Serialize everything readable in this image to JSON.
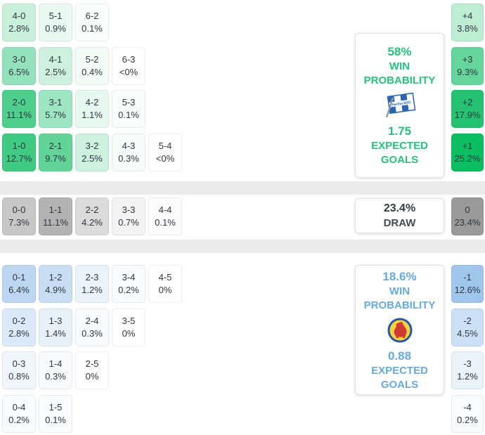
{
  "colors": {
    "home_accent": "#29c07c",
    "away_accent": "#68a9db",
    "draw_text": "#3d434b",
    "cell_text": "#2f3640",
    "divider": "#ececec",
    "home_strongest_cell": "#0cbe62",
    "away_strongest_cell": "#a0c6ec",
    "draw_strongest_cell": "#9a9a9a",
    "hertha_blue": "#2a64ae",
    "braunschweig_yellow": "#f7d23e",
    "braunschweig_blue": "#2357a7",
    "braunschweig_red": "#d03a32"
  },
  "home_card": {
    "win_pct": "58%",
    "win_label_line1": "WIN",
    "win_label_line2": "PROBABILITY",
    "expected_goals": "1.75",
    "goals_label_line1": "EXPECTED",
    "goals_label_line2": "GOALS",
    "team_icon": "hertha-bsc-flag-icon"
  },
  "draw_card": {
    "pct": "23.4%",
    "label": "DRAW"
  },
  "away_card": {
    "win_pct": "18.6%",
    "win_label_line1": "WIN",
    "win_label_line2": "PROBABILITY",
    "expected_goals": "0.88",
    "goals_label_line1": "EXPECTED",
    "goals_label_line2": "GOALS",
    "team_icon": "eintracht-braunschweig-crest-icon"
  },
  "grid": {
    "home_rows": [
      [
        {
          "label": "4-0",
          "pct": "2.8%",
          "color": "#c8f0db"
        },
        {
          "label": "5-1",
          "pct": "0.9%",
          "color": "#eaf9f1"
        },
        {
          "label": "6-2",
          "pct": "0.1%",
          "color": "#fbfdfc"
        }
      ],
      [
        {
          "label": "3-0",
          "pct": "6.5%",
          "color": "#93e2bb"
        },
        {
          "label": "4-1",
          "pct": "2.5%",
          "color": "#cdf1de"
        },
        {
          "label": "5-2",
          "pct": "0.4%",
          "color": "#f4fcf8"
        },
        {
          "label": "6-3",
          "pct": "<0%",
          "color": "#ffffff"
        }
      ],
      [
        {
          "label": "2-0",
          "pct": "11.1%",
          "color": "#4fcf8c"
        },
        {
          "label": "3-1",
          "pct": "5.7%",
          "color": "#9ee5c2"
        },
        {
          "label": "4-2",
          "pct": "1.1%",
          "color": "#e6f8ef"
        },
        {
          "label": "5-3",
          "pct": "0.1%",
          "color": "#fbfdfc"
        }
      ],
      [
        {
          "label": "1-0",
          "pct": "12.7%",
          "color": "#40cb82"
        },
        {
          "label": "2-1",
          "pct": "9.7%",
          "color": "#62d498"
        },
        {
          "label": "3-2",
          "pct": "2.5%",
          "color": "#cdf1de"
        },
        {
          "label": "4-3",
          "pct": "0.3%",
          "color": "#f6fcf9"
        },
        {
          "label": "5-4",
          "pct": "<0%",
          "color": "#ffffff"
        }
      ]
    ],
    "draw_row": [
      {
        "label": "0-0",
        "pct": "7.3%",
        "color": "#c7c7c7"
      },
      {
        "label": "1-1",
        "pct": "11.1%",
        "color": "#b3b3b3"
      },
      {
        "label": "2-2",
        "pct": "4.2%",
        "color": "#dbdbdb"
      },
      {
        "label": "3-3",
        "pct": "0.7%",
        "color": "#f3f3f3"
      },
      {
        "label": "4-4",
        "pct": "0.1%",
        "color": "#fcfcfc"
      }
    ],
    "away_rows": [
      [
        {
          "label": "0-1",
          "pct": "6.4%",
          "color": "#bdd6f1"
        },
        {
          "label": "1-2",
          "pct": "4.9%",
          "color": "#c9def4"
        },
        {
          "label": "2-3",
          "pct": "1.2%",
          "color": "#eaf2fa"
        },
        {
          "label": "3-4",
          "pct": "0.2%",
          "color": "#f9fbfe"
        },
        {
          "label": "4-5",
          "pct": "0%",
          "color": "#ffffff"
        }
      ],
      [
        {
          "label": "0-2",
          "pct": "2.8%",
          "color": "#dce9f8"
        },
        {
          "label": "1-3",
          "pct": "1.4%",
          "color": "#e8f1fa"
        },
        {
          "label": "2-4",
          "pct": "0.3%",
          "color": "#f8fafd"
        },
        {
          "label": "3-5",
          "pct": "0%",
          "color": "#ffffff"
        }
      ],
      [
        {
          "label": "0-3",
          "pct": "0.8%",
          "color": "#f1f6fc"
        },
        {
          "label": "1-4",
          "pct": "0.3%",
          "color": "#f8fafd"
        },
        {
          "label": "2-5",
          "pct": "0%",
          "color": "#ffffff"
        }
      ],
      [
        {
          "label": "0-4",
          "pct": "0.2%",
          "color": "#f9fbfe"
        },
        {
          "label": "1-5",
          "pct": "0.1%",
          "color": "#fbfcfe"
        }
      ]
    ]
  },
  "margins": {
    "home": [
      {
        "label": "+4",
        "pct": "3.8%",
        "color": "#bdedd3"
      },
      {
        "label": "+3",
        "pct": "9.3%",
        "color": "#66d59b"
      },
      {
        "label": "+2",
        "pct": "17.9%",
        "color": "#25c371"
      },
      {
        "label": "+1",
        "pct": "25.2%",
        "color": "#0cbe62"
      }
    ],
    "draw": {
      "label": "0",
      "pct": "23.4%",
      "color": "#9a9a9a"
    },
    "away": [
      {
        "label": "-1",
        "pct": "12.6%",
        "color": "#a0c6ec"
      },
      {
        "label": "-2",
        "pct": "4.5%",
        "color": "#cce0f5"
      },
      {
        "label": "-3",
        "pct": "1.2%",
        "color": "#eaf2fa"
      },
      {
        "label": "-4",
        "pct": "0.2%",
        "color": "#f9fbfe"
      }
    ]
  }
}
